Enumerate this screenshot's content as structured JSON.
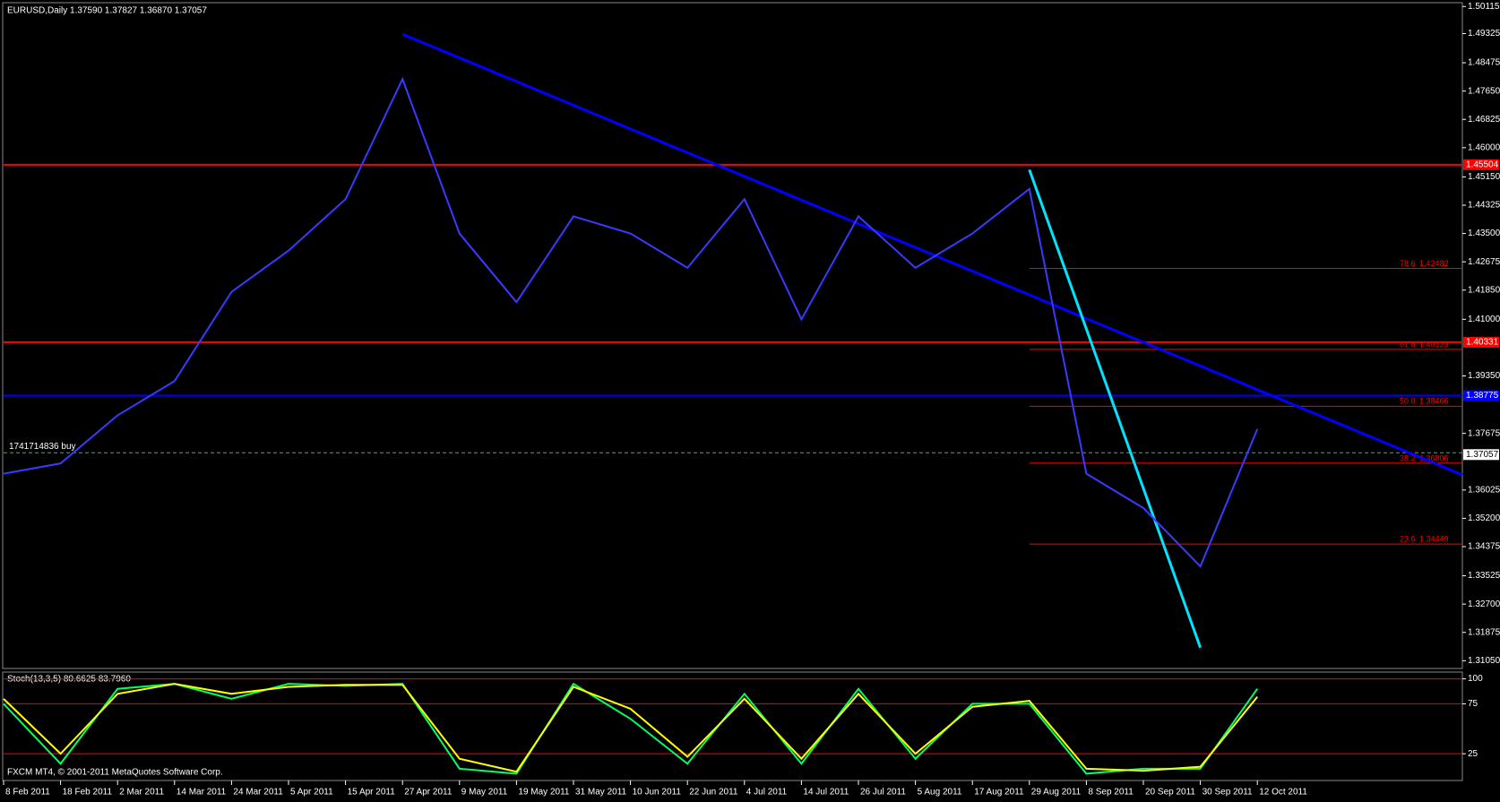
{
  "chart_data": [
    {
      "type": "line",
      "title": "EURUSD,Daily 1.37590 1.37827 1.36870 1.37057",
      "categories": [
        "8 Feb 2011",
        "18 Feb 2011",
        "2 Mar 2011",
        "14 Mar 2011",
        "24 Mar 2011",
        "5 Apr 2011",
        "15 Apr 2011",
        "27 Apr 2011",
        "9 May 2011",
        "19 May 2011",
        "31 May 2011",
        "10 Jun 2011",
        "22 Jun 2011",
        "4 Jul 2011",
        "14 Jul 2011",
        "26 Jul 2011",
        "5 Aug 2011",
        "17 Aug 2011",
        "29 Aug 2011",
        "8 Sep 2011",
        "20 Sep 2011",
        "30 Sep 2011",
        "12 Oct 2011"
      ],
      "series": [
        {
          "color": "#3a3aff",
          "values": [
            1.365,
            1.368,
            1.382,
            1.392,
            1.418,
            1.43,
            1.445,
            1.48,
            1.435,
            1.415,
            1.44,
            1.435,
            1.425,
            1.445,
            1.41,
            1.44,
            1.425,
            1.435,
            1.448,
            1.365,
            1.355,
            1.338,
            1.378
          ]
        }
      ],
      "ylim": [
        1.3085,
        1.502
      ],
      "yticks": [
        {
          "value": 1.50115,
          "label": "1.50115"
        },
        {
          "value": 1.49325,
          "label": "1.49325"
        },
        {
          "value": 1.48475,
          "label": "1.48475"
        },
        {
          "value": 1.4765,
          "label": "1.47650"
        },
        {
          "value": 1.46825,
          "label": "1.46825"
        },
        {
          "value": 1.46,
          "label": "1.46000"
        },
        {
          "value": 1.4515,
          "label": "1.45150"
        },
        {
          "value": 1.44325,
          "label": "1.44325"
        },
        {
          "value": 1.435,
          "label": "1.43500"
        },
        {
          "value": 1.42675,
          "label": "1.42675"
        },
        {
          "value": 1.4185,
          "label": "1.41850"
        },
        {
          "value": 1.41,
          "label": "1.41000"
        },
        {
          "value": 1.3935,
          "label": "1.39350"
        },
        {
          "value": 1.37675,
          "label": "1.37675"
        },
        {
          "value": 1.36025,
          "label": "1.36025"
        },
        {
          "value": 1.352,
          "label": "1.35200"
        },
        {
          "value": 1.34375,
          "label": "1.34375"
        },
        {
          "value": 1.33525,
          "label": "1.33525"
        },
        {
          "value": 1.327,
          "label": "1.32700"
        },
        {
          "value": 1.31875,
          "label": "1.31875"
        },
        {
          "value": 1.3105,
          "label": "1.31050"
        }
      ],
      "hlines": [
        {
          "value": 1.45504,
          "label": "1.45504",
          "color": "#ff0000"
        },
        {
          "value": 1.40331,
          "label": "1.40331",
          "color": "#ff0000"
        },
        {
          "value": 1.38775,
          "label": "1.38775",
          "color": "#0000ff"
        }
      ],
      "current_price": {
        "value": 1.37057,
        "label": "1.37057"
      },
      "order_line": {
        "value": 1.3711,
        "label": "1741714836 buy"
      },
      "fibo": {
        "start": "29 Aug 2011",
        "color": "#ff0000",
        "levels": [
          {
            "level": "78.6",
            "value": 1.42482,
            "label": "1.42482"
          },
          {
            "level": "61.8",
            "value": 1.40123,
            "label": "1.40123"
          },
          {
            "level": "50.0",
            "value": 1.38466,
            "label": "1.38466"
          },
          {
            "level": "38.2",
            "value": 1.36806,
            "label": "1.36806"
          },
          {
            "level": "23.6",
            "value": 1.34449,
            "label": "1.34449"
          }
        ]
      },
      "trendlines": [
        {
          "color": "#0000ff",
          "from": {
            "x": "27 Apr 2011",
            "y": 1.4931
          },
          "to": {
            "x": "12 Oct 2011",
            "y": 1.3895
          }
        },
        {
          "color": "#00e5ff",
          "from": {
            "x": "29 Aug 2011",
            "y": 1.4536
          },
          "to": {
            "x": "30 Sep 2011",
            "y": 1.3143
          }
        }
      ]
    },
    {
      "type": "line",
      "title": "Stoch(13,3,5) 80.6625 83.7960",
      "series": [
        {
          "color": "#00ff66",
          "values": [
            75,
            15,
            90,
            95,
            80,
            95,
            93,
            95,
            10,
            5,
            95,
            60,
            15,
            85,
            15,
            90,
            20,
            75,
            75,
            5,
            10,
            10,
            90
          ]
        },
        {
          "color": "#ffff00",
          "values": [
            80,
            25,
            85,
            95,
            85,
            92,
            94,
            94,
            20,
            7,
            92,
            70,
            22,
            80,
            20,
            85,
            25,
            72,
            78,
            10,
            8,
            12,
            82
          ]
        }
      ],
      "ylim": [
        0,
        105
      ],
      "yticks": [
        100,
        75,
        25
      ],
      "level_color": "#ff0000"
    }
  ],
  "footer": "FXCM MT4, © 2001-2011 MetaQuotes Software Corp."
}
